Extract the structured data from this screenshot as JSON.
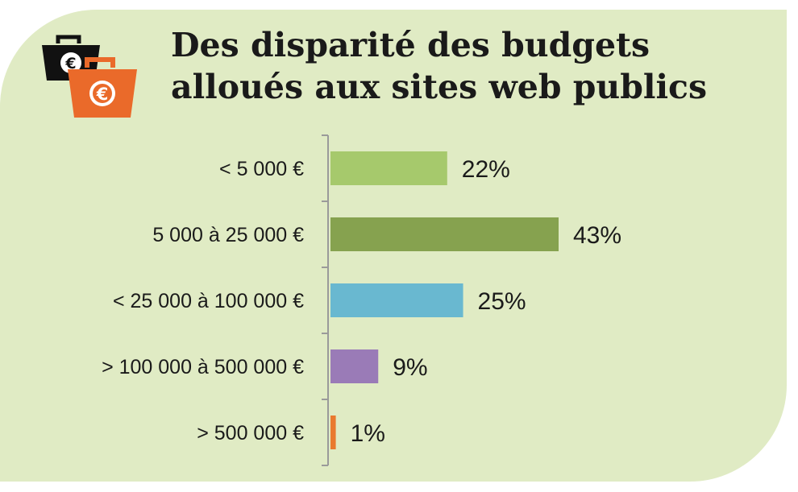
{
  "chart_data": {
    "type": "bar",
    "orientation": "horizontal",
    "title": [
      "Des disparité des budgets",
      "alloués aux sites web publics"
    ],
    "categories": [
      "< 5 000 €",
      "5 000 à 25 000 €",
      "< 25 000 à 100 000 €",
      "> 100 000 à 500 000 €",
      "> 500 000 €"
    ],
    "values": [
      22,
      43,
      25,
      9,
      1
    ],
    "value_labels": [
      "22%",
      "43%",
      "25%",
      "9%",
      "1%"
    ],
    "bar_colors": [
      "#a6c96c",
      "#86a24f",
      "#69b8d0",
      "#9a7bb7",
      "#e97a2f"
    ],
    "xlim": [
      0,
      43
    ],
    "grid": false,
    "legend": "none"
  },
  "colors": {
    "background": "#e0ebc4",
    "logo_bag_back": "#111111",
    "logo_bag_front": "#ea6a2a"
  },
  "icons": {
    "logo": "euro-shopping-bags-icon"
  }
}
